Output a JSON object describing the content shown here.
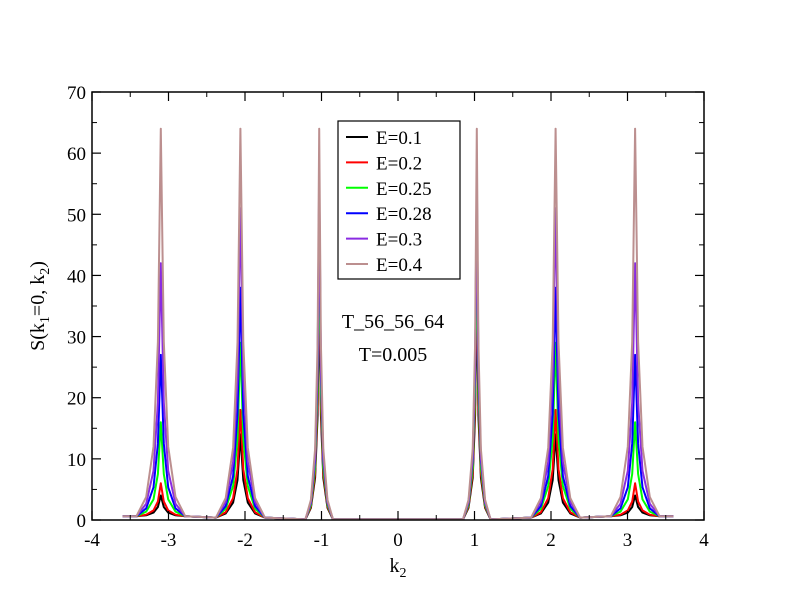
{
  "chart_data": {
    "type": "line",
    "title": "",
    "xlabel": "k_2",
    "ylabel": "S(k_1=0, k_2)",
    "xlim": [
      -4,
      4
    ],
    "ylim": [
      0,
      70
    ],
    "xticks": [
      -4,
      -3,
      -2,
      -1,
      0,
      1,
      2,
      3,
      4
    ],
    "yticks": [
      0,
      10,
      20,
      30,
      40,
      50,
      60,
      70
    ],
    "grid": false,
    "legend_position": "top-center",
    "annotations": [
      "T_56_56_64",
      "T=0.005"
    ],
    "series": [
      {
        "name": "E=0.1",
        "color": "#000000",
        "peaks": [
          {
            "x": -3.1,
            "y": 4
          },
          {
            "x": -2.06,
            "y": 14
          },
          {
            "x": -1.03,
            "y": 38
          },
          {
            "x": 1.03,
            "y": 38
          },
          {
            "x": 2.06,
            "y": 14
          },
          {
            "x": 3.1,
            "y": 4
          }
        ]
      },
      {
        "name": "E=0.2",
        "color": "#ff0000",
        "peaks": [
          {
            "x": -3.1,
            "y": 6
          },
          {
            "x": -2.06,
            "y": 18
          },
          {
            "x": -1.03,
            "y": 42
          },
          {
            "x": 1.03,
            "y": 42
          },
          {
            "x": 2.06,
            "y": 18
          },
          {
            "x": 3.1,
            "y": 6
          }
        ]
      },
      {
        "name": "E=0.25",
        "color": "#00ff00",
        "peaks": [
          {
            "x": -3.1,
            "y": 16
          },
          {
            "x": -2.06,
            "y": 29
          },
          {
            "x": -1.03,
            "y": 47
          },
          {
            "x": 1.03,
            "y": 47
          },
          {
            "x": 2.06,
            "y": 29
          },
          {
            "x": 3.1,
            "y": 16
          }
        ]
      },
      {
        "name": "E=0.28",
        "color": "#0000ff",
        "peaks": [
          {
            "x": -3.1,
            "y": 27
          },
          {
            "x": -2.06,
            "y": 38
          },
          {
            "x": -1.03,
            "y": 54
          },
          {
            "x": 1.03,
            "y": 54
          },
          {
            "x": 2.06,
            "y": 38
          },
          {
            "x": 3.1,
            "y": 27
          }
        ]
      },
      {
        "name": "E=0.3",
        "color": "#8a2be2",
        "peaks": [
          {
            "x": -3.1,
            "y": 42
          },
          {
            "x": -2.06,
            "y": 51
          },
          {
            "x": -1.03,
            "y": 56
          },
          {
            "x": 1.03,
            "y": 56
          },
          {
            "x": 2.06,
            "y": 51
          },
          {
            "x": 3.1,
            "y": 42
          }
        ]
      },
      {
        "name": "E=0.4",
        "color": "#bc8f8f",
        "peaks": [
          {
            "x": -3.1,
            "y": 64
          },
          {
            "x": -2.06,
            "y": 64
          },
          {
            "x": -1.03,
            "y": 64
          },
          {
            "x": 1.03,
            "y": 64
          },
          {
            "x": 2.06,
            "y": 64
          },
          {
            "x": 3.1,
            "y": 64
          }
        ]
      }
    ]
  }
}
